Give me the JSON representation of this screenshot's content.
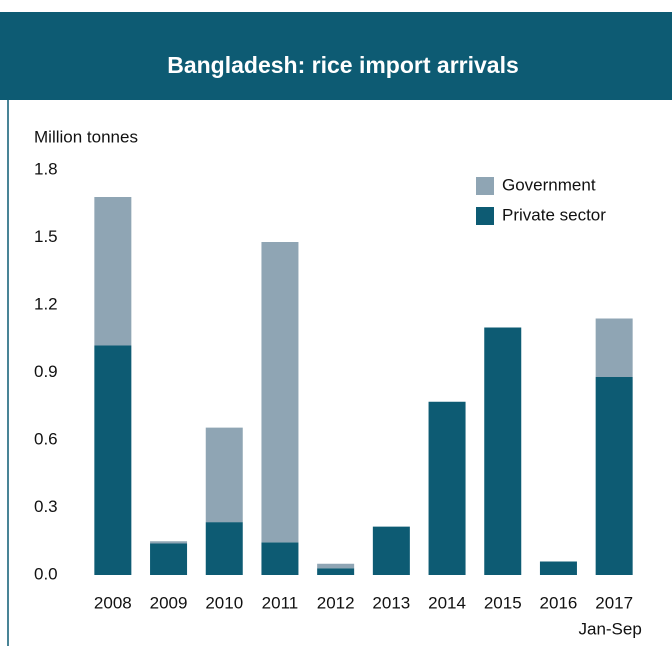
{
  "chart_data": {
    "type": "bar",
    "stacked": true,
    "title": "Bangladesh: rice import arrivals",
    "y_label": "Million tonnes",
    "categories": [
      "2008",
      "2009",
      "2010",
      "2011",
      "2012",
      "2013",
      "2014",
      "2015",
      "2016",
      "2017"
    ],
    "category_note": "Jan-Sep",
    "series": [
      {
        "name": "Private sector",
        "color": "#0d5b73",
        "values": [
          1.02,
          0.14,
          0.235,
          0.145,
          0.03,
          0.215,
          0.77,
          1.1,
          0.06,
          0.88
        ]
      },
      {
        "name": "Government",
        "color": "#8fa5b4",
        "values": [
          0.66,
          0.01,
          0.42,
          1.335,
          0.02,
          0,
          0,
          0,
          0,
          0.26
        ]
      }
    ],
    "ylim": [
      0,
      1.8
    ],
    "yticks": [
      {
        "value": 0,
        "label": "0.0"
      },
      0.3,
      0.6,
      0.9,
      1.2,
      1.5,
      1.8
    ],
    "grid": false,
    "legend": "upper right"
  }
}
